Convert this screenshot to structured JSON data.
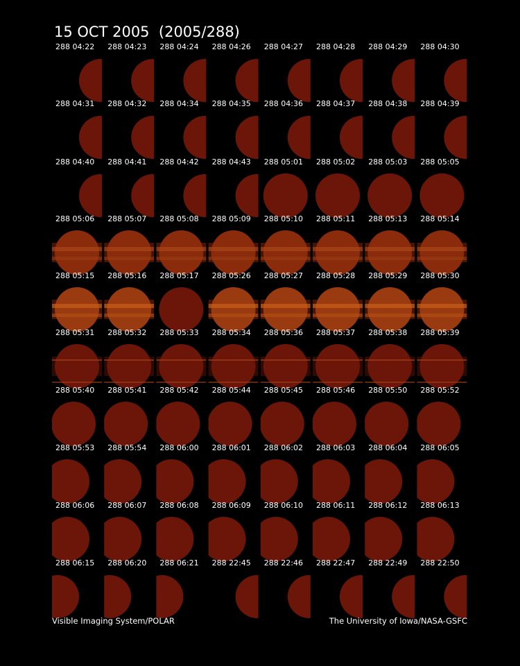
{
  "title": "15 OCT 2005  (2005/288)",
  "rows": [
    [
      "288 04:22",
      "288 04:23",
      "288 04:24",
      "288 04:26",
      "288 04:27",
      "288 04:28",
      "288 04:29",
      "288 04:30"
    ],
    [
      "288 04:31",
      "288 04:32",
      "288 04:34",
      "288 04:35",
      "288 04:36",
      "288 04:37",
      "288 04:38",
      "288 04:39"
    ],
    [
      "288 04:40",
      "288 04:41",
      "288 04:42",
      "288 04:43",
      "288 05:01",
      "288 05:02",
      "288 05:03",
      "288 05:05"
    ],
    [
      "288 05:06",
      "288 05:07",
      "288 05:08",
      "288 05:09",
      "288 05:10",
      "288 05:11",
      "288 05:13",
      "288 05:14"
    ],
    [
      "288 05:15",
      "288 05:16",
      "288 05:17",
      "288 05:26",
      "288 05:27",
      "288 05:28",
      "288 05:29",
      "288 05:30"
    ],
    [
      "288 05:31",
      "288 05:32",
      "288 05:33",
      "288 05:34",
      "288 05:36",
      "288 05:37",
      "288 05:38",
      "288 05:39"
    ],
    [
      "288 05:40",
      "288 05:41",
      "288 05:42",
      "288 05:44",
      "288 05:45",
      "288 05:46",
      "288 05:50",
      "288 05:52"
    ],
    [
      "288 05:53",
      "288 05:54",
      "288 06:00",
      "288 06:01",
      "288 06:02",
      "288 06:03",
      "288 06:04",
      "288 06:05"
    ],
    [
      "288 06:06",
      "288 06:07",
      "288 06:08",
      "288 06:09",
      "288 06:10",
      "288 06:11",
      "288 06:12",
      "288 06:13"
    ],
    [
      "288 06:15",
      "288 06:20",
      "288 06:21",
      "288 22:45",
      "288 22:46",
      "288 22:47",
      "288 22:49",
      "288 22:50"
    ]
  ],
  "footer": {
    "left": "Visible Imaging System/POLAR",
    "right": "The University of Iowa/NASA-GSFC"
  }
}
